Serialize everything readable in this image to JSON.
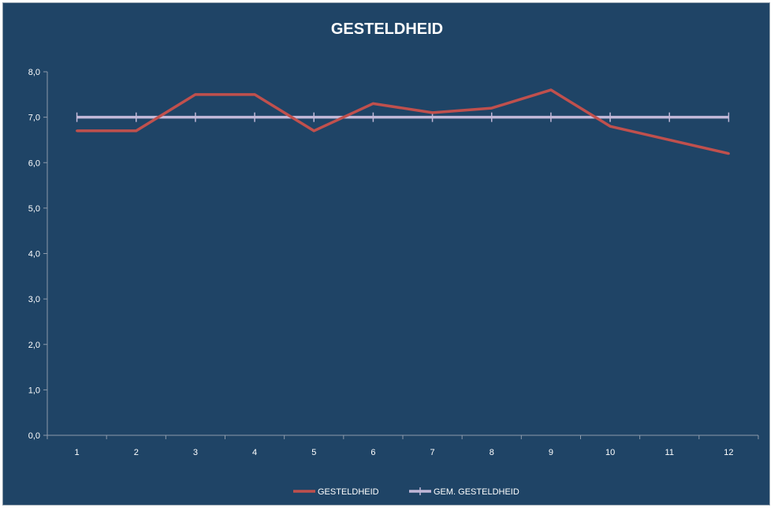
{
  "chart_data": {
    "type": "line",
    "title": "GESTELDHEID",
    "xlabel": "",
    "ylabel": "",
    "categories": [
      "1",
      "2",
      "3",
      "4",
      "5",
      "6",
      "7",
      "8",
      "9",
      "10",
      "11",
      "12"
    ],
    "ylim": [
      0,
      8
    ],
    "y_ticks": [
      "0,0",
      "1,0",
      "2,0",
      "3,0",
      "4,0",
      "5,0",
      "6,0",
      "7,0",
      "8,0"
    ],
    "grid": false,
    "legend_position": "bottom",
    "series": [
      {
        "name": "GESTELDHEID",
        "color": "#c0504d",
        "marker": "none",
        "values": [
          6.7,
          6.7,
          7.5,
          7.5,
          6.7,
          7.3,
          7.1,
          7.2,
          7.6,
          6.8,
          6.5,
          6.2
        ]
      },
      {
        "name": "GEM. GESTELDHEID",
        "color": "#c2b8d8",
        "marker": "plus",
        "values": [
          7.0,
          7.0,
          7.0,
          7.0,
          7.0,
          7.0,
          7.0,
          7.0,
          7.0,
          7.0,
          7.0,
          7.0
        ]
      }
    ]
  }
}
